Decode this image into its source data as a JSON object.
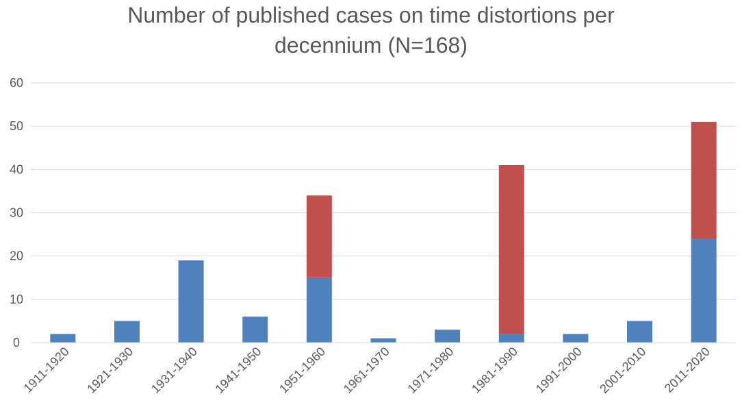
{
  "chart_data": {
    "type": "bar",
    "stacked": true,
    "title_lines": [
      "Number of published cases on time distortions per",
      "decennium (N=168)"
    ],
    "categories": [
      "1911-1920",
      "1921-1930",
      "1931-1940",
      "1941-1950",
      "1951-1960",
      "1961-1970",
      "1971-1980",
      "1981-1990",
      "1991-2000",
      "2001-2010",
      "2011-2020"
    ],
    "series": [
      {
        "color": "#4f81bd",
        "values": [
          2,
          5,
          19,
          6,
          15,
          1,
          3,
          2,
          2,
          5,
          24
        ]
      },
      {
        "color": "#c0504d",
        "values": [
          0,
          0,
          0,
          0,
          19,
          0,
          0,
          39,
          0,
          0,
          27
        ]
      }
    ],
    "xlabel": "",
    "ylabel": "",
    "ylim": [
      0,
      60
    ],
    "yticks": [
      0,
      10,
      20,
      30,
      40,
      50,
      60
    ],
    "grid": true,
    "legend": "none"
  }
}
